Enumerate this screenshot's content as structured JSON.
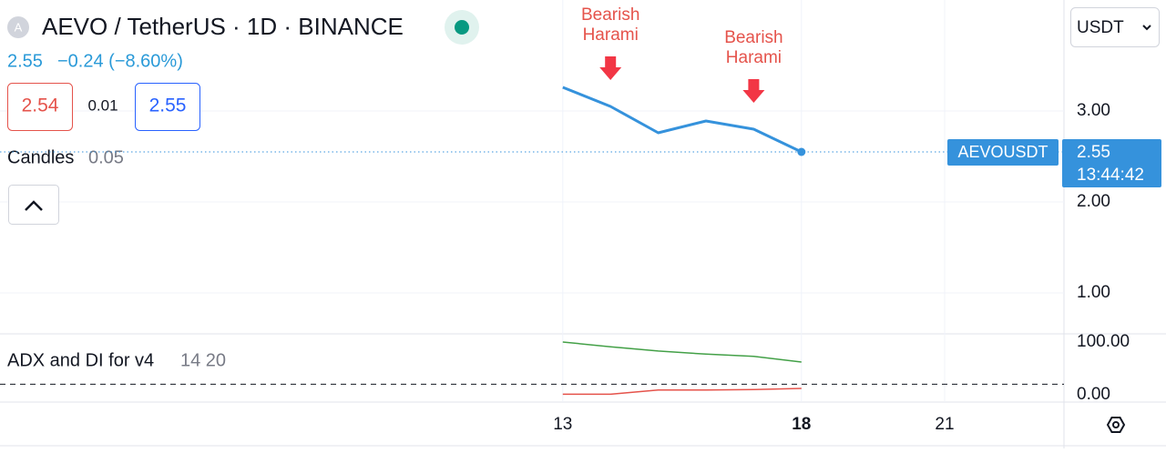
{
  "header": {
    "badge": "A",
    "symbol": "AEVO / TetherUS · 1D · BINANCE",
    "last": "2.55",
    "change": "−0.24 (−8.60%)",
    "bid": "2.54",
    "spread": "0.01",
    "ask": "2.55",
    "currency": "USDT"
  },
  "price_tag": {
    "symbol": "AEVOUSDT",
    "price": "2.55",
    "countdown": "13:44:42"
  },
  "chart_data": [
    {
      "type": "line",
      "legend_name": "Candles",
      "legend_value": "0.05",
      "x": [
        13,
        14,
        15,
        16,
        17,
        18
      ],
      "series": [
        {
          "color": "#3592dc",
          "values": [
            3.26,
            3.05,
            2.76,
            2.89,
            2.8,
            2.55
          ]
        }
      ],
      "xlim": [
        1.21,
        23.5
      ],
      "xticks": [
        13,
        18,
        21
      ],
      "ylim": [
        0.55,
        4.22
      ],
      "yticks": [
        {
          "value": 1,
          "label": "1.00"
        },
        {
          "value": 2,
          "label": "2.00"
        },
        {
          "value": 3,
          "label": "3.00"
        }
      ],
      "grid": true,
      "annotations": [
        {
          "x": 14,
          "text": [
            "Bearish",
            "Harami"
          ]
        },
        {
          "x": 17,
          "text": [
            "Bearish",
            "Harami"
          ]
        }
      ]
    },
    {
      "type": "line",
      "title": "ADX and DI for v4",
      "params": "14 20",
      "x": [
        13,
        14,
        15,
        16,
        17,
        18
      ],
      "series": [
        {
          "color": "#43a047",
          "values": [
            100,
            91,
            83,
            77,
            73,
            62
          ]
        },
        {
          "color": "#e5534b",
          "values": [
            1,
            1,
            9,
            9,
            10,
            12
          ]
        }
      ],
      "xlim": [
        1.21,
        23.5
      ],
      "ylim": [
        -13.8,
        115.5
      ],
      "yticks": [
        {
          "value": 0,
          "label": "0.00"
        },
        {
          "value": 100,
          "label": "100.00"
        }
      ],
      "grid": false,
      "level": 20
    }
  ]
}
